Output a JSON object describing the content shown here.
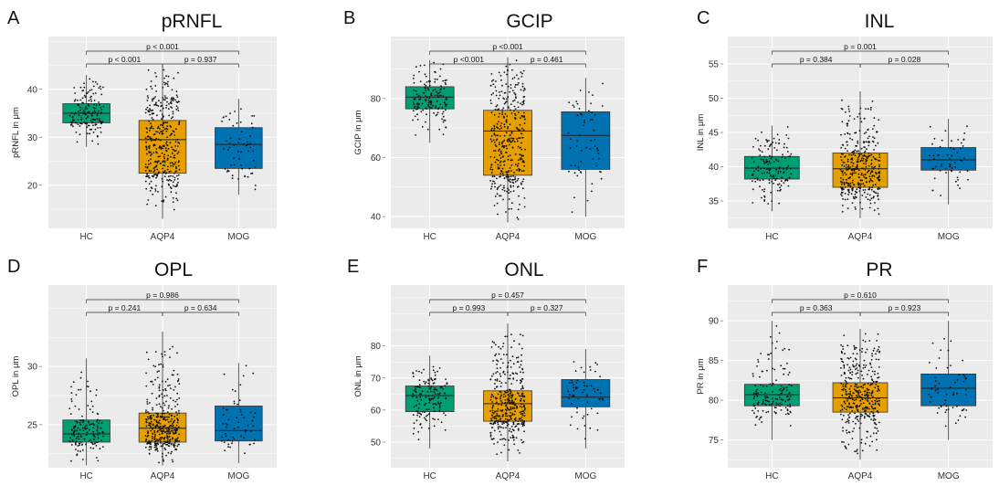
{
  "colors": {
    "HC": "#009E73",
    "AQP4": "#E69F00",
    "MOG": "#0072B2",
    "panel_bg": "#EBEBEB",
    "grid": "#ffffff"
  },
  "chart_data": [
    {
      "letter": "A",
      "title": "pRNFL",
      "type": "box",
      "ylabel": "pRNFL in μm",
      "categories": [
        "HC",
        "AQP4",
        "MOG"
      ],
      "yticks": [
        20,
        30,
        40
      ],
      "ylim": [
        11,
        51
      ],
      "boxes": [
        {
          "name": "HC",
          "q1": 33,
          "median": 35,
          "q3": 37,
          "whisker_low": 28,
          "whisker_high": 43
        },
        {
          "name": "AQP4",
          "q1": 22.5,
          "median": 29.5,
          "q3": 33.5,
          "whisker_low": 13,
          "whisker_high": 45
        },
        {
          "name": "MOG",
          "q1": 23.5,
          "median": 28.5,
          "q3": 32,
          "whisker_low": 18,
          "whisker_high": 38
        }
      ],
      "comparisons": [
        {
          "from": "HC",
          "to": "AQP4",
          "label": "p < 0.001"
        },
        {
          "from": "AQP4",
          "to": "MOG",
          "label": "p = 0.937"
        },
        {
          "from": "HC",
          "to": "MOG",
          "label": "p < 0.001"
        }
      ]
    },
    {
      "letter": "B",
      "title": "GCIP",
      "type": "box",
      "ylabel": "GCIP in μm",
      "categories": [
        "HC",
        "AQP4",
        "MOG"
      ],
      "yticks": [
        40,
        60,
        80
      ],
      "ylim": [
        36,
        101
      ],
      "boxes": [
        {
          "name": "HC",
          "q1": 76.5,
          "median": 80.5,
          "q3": 84,
          "whisker_low": 65,
          "whisker_high": 93
        },
        {
          "name": "AQP4",
          "q1": 54,
          "median": 69,
          "q3": 76,
          "whisker_low": 38,
          "whisker_high": 94
        },
        {
          "name": "MOG",
          "q1": 56,
          "median": 67.5,
          "q3": 75.5,
          "whisker_low": 40,
          "whisker_high": 87
        }
      ],
      "comparisons": [
        {
          "from": "HC",
          "to": "AQP4",
          "label": "p <0.001"
        },
        {
          "from": "AQP4",
          "to": "MOG",
          "label": "p = 0.461"
        },
        {
          "from": "HC",
          "to": "MOG",
          "label": "p <0.001"
        }
      ]
    },
    {
      "letter": "C",
      "title": "INL",
      "type": "box",
      "ylabel": "INL in μm",
      "categories": [
        "HC",
        "AQP4",
        "MOG"
      ],
      "yticks": [
        35,
        40,
        45,
        50,
        55
      ],
      "ylim": [
        31,
        59
      ],
      "boxes": [
        {
          "name": "HC",
          "q1": 38.2,
          "median": 39.8,
          "q3": 41.5,
          "whisker_low": 33.5,
          "whisker_high": 46
        },
        {
          "name": "AQP4",
          "q1": 37,
          "median": 39.7,
          "q3": 42,
          "whisker_low": 32.5,
          "whisker_high": 51
        },
        {
          "name": "MOG",
          "q1": 39.5,
          "median": 41,
          "q3": 42.8,
          "whisker_low": 34.5,
          "whisker_high": 47
        }
      ],
      "comparisons": [
        {
          "from": "HC",
          "to": "AQP4",
          "label": "p = 0.384"
        },
        {
          "from": "AQP4",
          "to": "MOG",
          "label": "p = 0.028"
        },
        {
          "from": "HC",
          "to": "MOG",
          "label": "p = 0.001"
        }
      ]
    },
    {
      "letter": "D",
      "title": "OPL",
      "type": "box",
      "ylabel": "OPL in μm",
      "categories": [
        "HC",
        "AQP4",
        "MOG"
      ],
      "yticks": [
        25,
        30
      ],
      "ylim": [
        21.3,
        37
      ],
      "boxes": [
        {
          "name": "HC",
          "q1": 23.5,
          "median": 24.2,
          "q3": 25.4,
          "whisker_low": 21.5,
          "whisker_high": 30.7
        },
        {
          "name": "AQP4",
          "q1": 23.5,
          "median": 24.7,
          "q3": 26,
          "whisker_low": 21.5,
          "whisker_high": 33
        },
        {
          "name": "MOG",
          "q1": 23.6,
          "median": 24.5,
          "q3": 26.6,
          "whisker_low": 21.7,
          "whisker_high": 30.3
        }
      ],
      "comparisons": [
        {
          "from": "HC",
          "to": "AQP4",
          "label": "p = 0.241"
        },
        {
          "from": "AQP4",
          "to": "MOG",
          "label": "p = 0.634"
        },
        {
          "from": "HC",
          "to": "MOG",
          "label": "p = 0.986"
        }
      ]
    },
    {
      "letter": "E",
      "title": "ONL",
      "type": "box",
      "ylabel": "ONL in μm",
      "categories": [
        "HC",
        "AQP4",
        "MOG"
      ],
      "yticks": [
        50,
        60,
        70,
        80
      ],
      "ylim": [
        42,
        99
      ],
      "boxes": [
        {
          "name": "HC",
          "q1": 59.5,
          "median": 64.5,
          "q3": 67.5,
          "whisker_low": 48,
          "whisker_high": 77
        },
        {
          "name": "AQP4",
          "q1": 56.5,
          "median": 62,
          "q3": 66,
          "whisker_low": 44,
          "whisker_high": 87
        },
        {
          "name": "MOG",
          "q1": 61,
          "median": 64,
          "q3": 69.5,
          "whisker_low": 48,
          "whisker_high": 79
        }
      ],
      "comparisons": [
        {
          "from": "HC",
          "to": "AQP4",
          "label": "p = 0.993"
        },
        {
          "from": "AQP4",
          "to": "MOG",
          "label": "p = 0.327"
        },
        {
          "from": "HC",
          "to": "MOG",
          "label": "p = 0.457"
        }
      ]
    },
    {
      "letter": "F",
      "title": "PR",
      "type": "box",
      "ylabel": "PR in μm",
      "categories": [
        "HC",
        "AQP4",
        "MOG"
      ],
      "yticks": [
        75,
        80,
        85,
        90
      ],
      "ylim": [
        71.5,
        94.5
      ],
      "boxes": [
        {
          "name": "HC",
          "q1": 79.3,
          "median": 80.7,
          "q3": 82,
          "whisker_low": 75,
          "whisker_high": 90
        },
        {
          "name": "AQP4",
          "q1": 78.5,
          "median": 80.3,
          "q3": 82.2,
          "whisker_low": 72.5,
          "whisker_high": 89
        },
        {
          "name": "MOG",
          "q1": 79.3,
          "median": 81.5,
          "q3": 83.3,
          "whisker_low": 75,
          "whisker_high": 90
        }
      ],
      "comparisons": [
        {
          "from": "HC",
          "to": "AQP4",
          "label": "p = 0.363"
        },
        {
          "from": "AQP4",
          "to": "MOG",
          "label": "p = 0.923"
        },
        {
          "from": "HC",
          "to": "MOG",
          "label": "p = 0.610"
        }
      ]
    }
  ]
}
